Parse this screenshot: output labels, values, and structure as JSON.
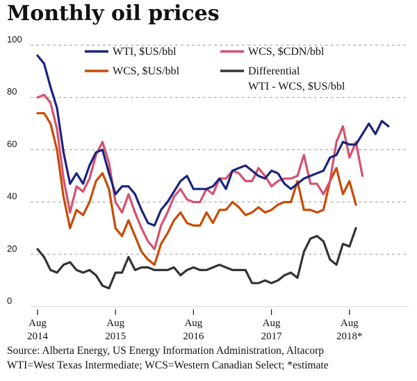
{
  "title": "Monthly oil prices",
  "chart_data": {
    "type": "line",
    "title": "Monthly oil prices",
    "ylim": [
      0,
      100
    ],
    "y_ticks": [
      "0",
      "20",
      "40",
      "60",
      "80",
      "100"
    ],
    "grid": "horizontal dashed",
    "x_start_month": "2014-08",
    "x_ticks": [
      {
        "month": "2014-08",
        "label": "Aug",
        "year": "2014"
      },
      {
        "month": "2015-08",
        "label": "Aug",
        "year": "2015"
      },
      {
        "month": "2016-08",
        "label": "Aug",
        "year": "2016"
      },
      {
        "month": "2017-08",
        "label": "Aug",
        "year": "2017"
      },
      {
        "month": "2018-08",
        "label": "Aug",
        "year": "2018*"
      }
    ],
    "legend_position": "top",
    "series": [
      {
        "name": "WTI, $US/bbl",
        "color": "#1a237e",
        "values": [
          96,
          93,
          84,
          76,
          59,
          47,
          51,
          47,
          54,
          59,
          60,
          51,
          43,
          46,
          46,
          43,
          37,
          32,
          31,
          37,
          40,
          44,
          48,
          50,
          45,
          45,
          45,
          46,
          49,
          45,
          52,
          53,
          54,
          52,
          50,
          49,
          52,
          51,
          47,
          45,
          47,
          49,
          50,
          51,
          52,
          57,
          58,
          63,
          62,
          62,
          66,
          70,
          66,
          71,
          69
        ]
      },
      {
        "name": "WCS, $CDN/bbl",
        "color": "#d6506e",
        "values": [
          80,
          81,
          78,
          68,
          49,
          36,
          46,
          44,
          49,
          58,
          63,
          55,
          40,
          36,
          43,
          36,
          30,
          25,
          22,
          31,
          36,
          42,
          45,
          41,
          40,
          40,
          45,
          43,
          49,
          49,
          52,
          51,
          48,
          48,
          53,
          50,
          46,
          48,
          49,
          49,
          50,
          58,
          47,
          47,
          43,
          48,
          63,
          69,
          57,
          63,
          50
        ]
      },
      {
        "name": "WCS, $US/bbl",
        "color": "#c84a00",
        "values": [
          74,
          74,
          70,
          60,
          42,
          30,
          37,
          35,
          40,
          48,
          51,
          45,
          30,
          27,
          33,
          27,
          21,
          18,
          16,
          24,
          28,
          33,
          36,
          32,
          31,
          31,
          36,
          32,
          37,
          37,
          40,
          38,
          35,
          36,
          38,
          36,
          37,
          39,
          40,
          40,
          48,
          37,
          37,
          36,
          37,
          48,
          53,
          43,
          48,
          39
        ]
      },
      {
        "name": "Differential WTI - WCS, $US/bbl",
        "color": "#333333",
        "values": [
          22,
          19,
          14,
          13,
          16,
          17,
          14,
          13,
          14,
          12,
          8,
          7,
          13,
          13,
          19,
          14,
          15,
          15,
          14,
          14,
          14,
          15,
          12,
          14,
          15,
          14,
          14,
          15,
          16,
          15,
          14,
          14,
          14,
          9,
          9,
          10,
          9,
          10,
          12,
          13,
          11,
          21,
          26,
          27,
          25,
          18,
          16,
          24,
          23,
          30
        ]
      }
    ]
  },
  "legend": {
    "wti": "WTI, $US/bbl",
    "wcs_cdn": "WCS, $CDN/bbl",
    "wcs_us": "WCS, $US/bbl",
    "diff_line1": "Differential",
    "diff_line2": "WTI - WCS, $US/bbl"
  },
  "source_line": "Source: Alberta Energy, US Energy Information Administration, Altacorp",
  "footnote_line": "WTI=West Texas Intermediate; WCS=Western Canadian Select; *estimate"
}
